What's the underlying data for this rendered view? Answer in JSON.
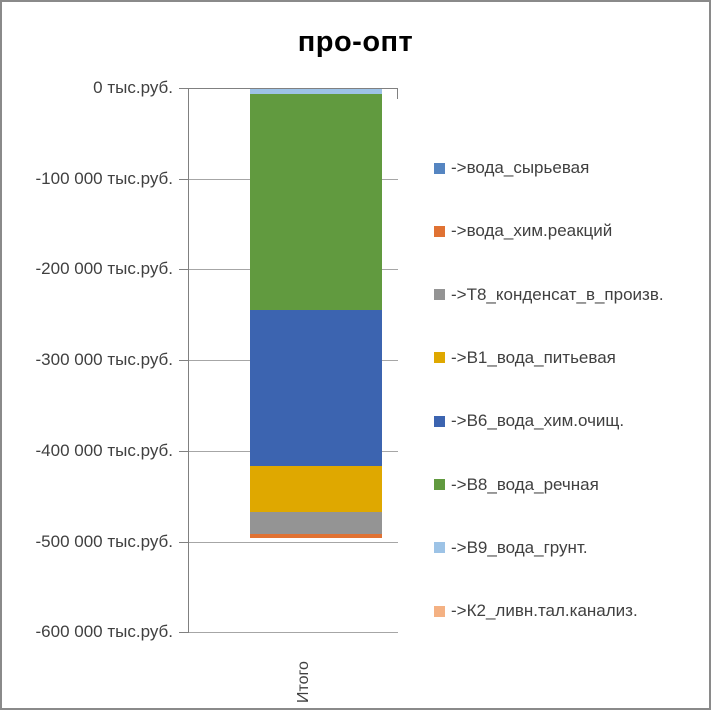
{
  "chart_data": {
    "type": "bar",
    "subtype": "stacked-column-negative",
    "title": "про-опт",
    "categories": [
      "Итого"
    ],
    "series": [
      {
        "name": "->вода_сырьевая",
        "color": "#5585C1",
        "values": [
          0
        ]
      },
      {
        "name": "->вода_хим.реакций",
        "color": "#E07233",
        "values": [
          -4000
        ]
      },
      {
        "name": "->Т8_конденсат_в_произв.",
        "color": "#949494",
        "values": [
          -25000
        ]
      },
      {
        "name": "->В1_вода_питьевая",
        "color": "#DFA800",
        "values": [
          -50000
        ]
      },
      {
        "name": "->В6_вода_хим.очищ.",
        "color": "#3C64B0",
        "values": [
          -172000
        ]
      },
      {
        "name": "->В8_вода_речная",
        "color": "#619A3F",
        "values": [
          -239000
        ]
      },
      {
        "name": "->В9_вода_грунт.",
        "color": "#9DC3E6",
        "values": [
          -5000
        ]
      },
      {
        "name": "->К2_ливн.тал.канализ.",
        "color": "#F4B183",
        "values": [
          0
        ]
      }
    ],
    "stack_order_top_to_bottom": [
      "->В9_вода_грунт.",
      "->В8_вода_речная",
      "->В6_вода_хим.очищ.",
      "->В1_вода_питьевая",
      "->Т8_конденсат_в_произв.",
      "->вода_хим.реакций",
      "->вода_сырьевая",
      "->К2_ливн.тал.канализ."
    ],
    "approx_total": -495000,
    "y_unit": "тыс.руб.",
    "y_tick_labels": [
      "0 тыс.руб.",
      "-100 000 тыс.руб.",
      "-200 000 тыс.руб.",
      "-300 000 тыс.руб.",
      "-400 000 тыс.руб.",
      "-500 000 тыс.руб.",
      "-600 000 тыс.руб."
    ],
    "ylim": [
      -600000,
      0
    ],
    "ytick_step": 100000,
    "grid": true,
    "legend_position": "right"
  },
  "colors": {
    "axis": "#808080",
    "gridline": "#A6A6A6",
    "label_text": "#404040",
    "title_text": "#000000",
    "frame_border": "#8A8A8A"
  }
}
